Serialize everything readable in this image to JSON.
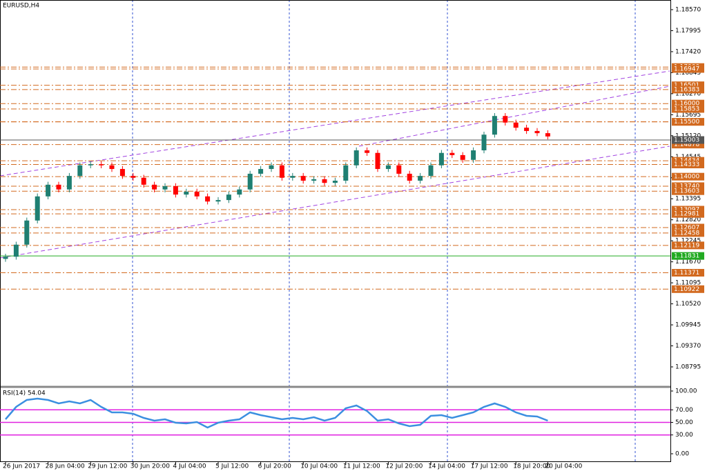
{
  "chart_data": {
    "type": "candlestick",
    "title": "EURUSD,H4",
    "up_color": "#1f7f72",
    "down_color": "#ff0000",
    "ylim": [
      1.08267,
      1.18834
    ],
    "yticks": [
      {
        "value": 1.1857,
        "label": "1.18570"
      },
      {
        "value": 1.17995,
        "label": "1.17995"
      },
      {
        "value": 1.1742,
        "label": "1.17420"
      },
      {
        "value": 1.16845,
        "label": "1.16845"
      },
      {
        "value": 1.1627,
        "label": "1.16270"
      },
      {
        "value": 1.15695,
        "label": "1.15695"
      },
      {
        "value": 1.1512,
        "label": "1.15120"
      },
      {
        "value": 1.14545,
        "label": "1.14545"
      },
      {
        "value": 1.1397,
        "label": "1.13970"
      },
      {
        "value": 1.13395,
        "label": "1.13395"
      },
      {
        "value": 1.1282,
        "label": "1.12820"
      },
      {
        "value": 1.12245,
        "label": "1.12245"
      },
      {
        "value": 1.1167,
        "label": "1.11670"
      },
      {
        "value": 1.11095,
        "label": "1.11095"
      },
      {
        "value": 1.1052,
        "label": "1.10520"
      },
      {
        "value": 1.09945,
        "label": "1.09945"
      },
      {
        "value": 1.0937,
        "label": "1.09370"
      },
      {
        "value": 1.08795,
        "label": "1.08795"
      }
    ],
    "categories": [
      "26 Jun 2017",
      null,
      null,
      null,
      "28 Jun 04:00",
      null,
      null,
      null,
      "29 Jun 12:00",
      null,
      null,
      null,
      "30 Jun 20:00",
      null,
      null,
      null,
      "4 Jul 04:00",
      null,
      null,
      null,
      "5 Jul 12:00",
      null,
      null,
      null,
      "6 Jul 20:00",
      null,
      null,
      null,
      "10 Jul 04:00",
      null,
      null,
      null,
      "11 Jul 12:00",
      null,
      null,
      null,
      "12 Jul 20:00",
      null,
      null,
      null,
      "14 Jul 04:00",
      null,
      null,
      null,
      "17 Jul 12:00",
      null,
      null,
      null,
      "18 Jul 20:00",
      null,
      null,
      "20 Jul 04:00"
    ],
    "open": [
      1.1175,
      1.1181,
      1.1214,
      1.128,
      1.1346,
      1.1378,
      1.1365,
      1.1402,
      1.1431,
      1.1434,
      1.1431,
      1.1421,
      1.1402,
      1.1397,
      1.1378,
      1.1365,
      1.1374,
      1.1351,
      1.1359,
      1.1346,
      1.1332,
      1.1336,
      1.1351,
      1.1365,
      1.1408,
      1.1421,
      1.1431,
      1.1397,
      1.1402,
      1.1389,
      1.1393,
      1.1383,
      1.1389,
      1.1431,
      1.1472,
      1.1465,
      1.1421,
      1.1431,
      1.1408,
      1.1389,
      1.1402,
      1.1431,
      1.1465,
      1.1459,
      1.1446,
      1.1472,
      1.1515,
      1.1566,
      1.1548,
      1.1534,
      1.1525,
      1.1519
    ],
    "high": [
      1.1189,
      1.1222,
      1.1288,
      1.1354,
      1.1386,
      1.1386,
      1.141,
      1.1439,
      1.1442,
      1.1442,
      1.1439,
      1.1429,
      1.141,
      1.1405,
      1.1386,
      1.1382,
      1.1382,
      1.1367,
      1.1367,
      1.1354,
      1.1344,
      1.1359,
      1.1373,
      1.1416,
      1.1429,
      1.1439,
      1.1439,
      1.141,
      1.141,
      1.1401,
      1.1401,
      1.1397,
      1.1439,
      1.148,
      1.148,
      1.1473,
      1.1439,
      1.1439,
      1.1416,
      1.141,
      1.1439,
      1.1473,
      1.1473,
      1.1467,
      1.148,
      1.1523,
      1.1574,
      1.1574,
      1.1556,
      1.1542,
      1.1533,
      1.1527
    ],
    "low": [
      1.1167,
      1.1173,
      1.1206,
      1.1272,
      1.1338,
      1.1357,
      1.1357,
      1.1394,
      1.1423,
      1.1423,
      1.1413,
      1.1394,
      1.1389,
      1.137,
      1.1357,
      1.1357,
      1.1343,
      1.1343,
      1.1338,
      1.1324,
      1.1324,
      1.1328,
      1.1343,
      1.1357,
      1.14,
      1.1413,
      1.1389,
      1.1389,
      1.1381,
      1.1381,
      1.1375,
      1.1375,
      1.1381,
      1.1423,
      1.1457,
      1.1413,
      1.1413,
      1.14,
      1.1381,
      1.1381,
      1.1394,
      1.1423,
      1.1451,
      1.1438,
      1.1438,
      1.1464,
      1.1507,
      1.154,
      1.1526,
      1.1517,
      1.1511,
      1.1502
    ],
    "close": [
      1.1181,
      1.1214,
      1.128,
      1.1346,
      1.1378,
      1.1365,
      1.1402,
      1.1431,
      1.1434,
      1.1431,
      1.1421,
      1.1402,
      1.1397,
      1.1378,
      1.1365,
      1.1374,
      1.1351,
      1.1359,
      1.1346,
      1.1332,
      1.1336,
      1.1351,
      1.1365,
      1.1408,
      1.1421,
      1.1431,
      1.1397,
      1.1402,
      1.1389,
      1.1393,
      1.1383,
      1.1389,
      1.1431,
      1.1472,
      1.1465,
      1.1421,
      1.1431,
      1.1408,
      1.1389,
      1.1402,
      1.1431,
      1.1465,
      1.1459,
      1.1446,
      1.1472,
      1.1515,
      1.1566,
      1.1548,
      1.1534,
      1.1525,
      1.1519,
      1.151
    ],
    "level_color": "#d2691e",
    "levels": [
      {
        "value": 1.17,
        "label": "1.17000"
      },
      {
        "value": 1.16947,
        "label": "1.16947"
      },
      {
        "value": 1.16501,
        "label": "1.16501"
      },
      {
        "value": 1.16383,
        "label": "1.16383"
      },
      {
        "value": 1.16,
        "label": "1.16000"
      },
      {
        "value": 1.15853,
        "label": "1.15853"
      },
      {
        "value": 1.15501,
        "label": "1.15501"
      },
      {
        "value": 1.155,
        "label": "1.15500"
      },
      {
        "value": 1.14878,
        "label": "1.14878"
      },
      {
        "value": 1.14434,
        "label": "1.14434"
      },
      {
        "value": 1.14333,
        "label": "1.14333"
      },
      {
        "value": 1.14,
        "label": "1.14000"
      },
      {
        "value": 1.1374,
        "label": "1.13740"
      },
      {
        "value": 1.13603,
        "label": "1.13603"
      },
      {
        "value": 1.13097,
        "label": "1.13097"
      },
      {
        "value": 1.12981,
        "label": "1.12981"
      },
      {
        "value": 1.12607,
        "label": "1.12607"
      },
      {
        "value": 1.12458,
        "label": "1.12458"
      },
      {
        "value": 1.12119,
        "label": "1.12119"
      },
      {
        "value": 1.11371,
        "label": "1.11371"
      },
      {
        "value": 1.10922,
        "label": "1.10922"
      }
    ],
    "support_line": {
      "value": 1.11831,
      "label": "1.11831",
      "color": "#22aa22"
    },
    "bid_line": {
      "value": 1.15003,
      "label": "1.15003",
      "color": "#555555"
    },
    "rsi": {
      "title": "RSI(14) 54.04",
      "color": "#3b8fe0",
      "level_color": "#e020e0",
      "ylim": [
        0,
        100
      ],
      "yticks": [
        {
          "value": 100,
          "label": "100.00"
        },
        {
          "value": 70,
          "label": "70.00"
        },
        {
          "value": 50,
          "label": "50.00"
        },
        {
          "value": 30,
          "label": "30.00"
        },
        {
          "value": 0,
          "label": "0.00"
        }
      ],
      "levels": [
        70,
        50,
        30
      ],
      "values": [
        54.9,
        74.7,
        85.7,
        87.9,
        85.7,
        80.2,
        83.5,
        80.2,
        85.7,
        74.7,
        65.9,
        65.9,
        63.7,
        57.1,
        52.7,
        54.9,
        49.5,
        48.4,
        50.5,
        41.8,
        49.5,
        52.7,
        54.9,
        65.9,
        61.5,
        58.2,
        54.9,
        57.1,
        54.9,
        58.2,
        52.7,
        57.1,
        72.5,
        76.9,
        68.1,
        52.7,
        54.9,
        48.4,
        44.0,
        46.2,
        60.4,
        61.5,
        57.1,
        61.5,
        65.9,
        74.7,
        80.2,
        74.7,
        65.9,
        60.4,
        59.3,
        52.7
      ]
    }
  }
}
